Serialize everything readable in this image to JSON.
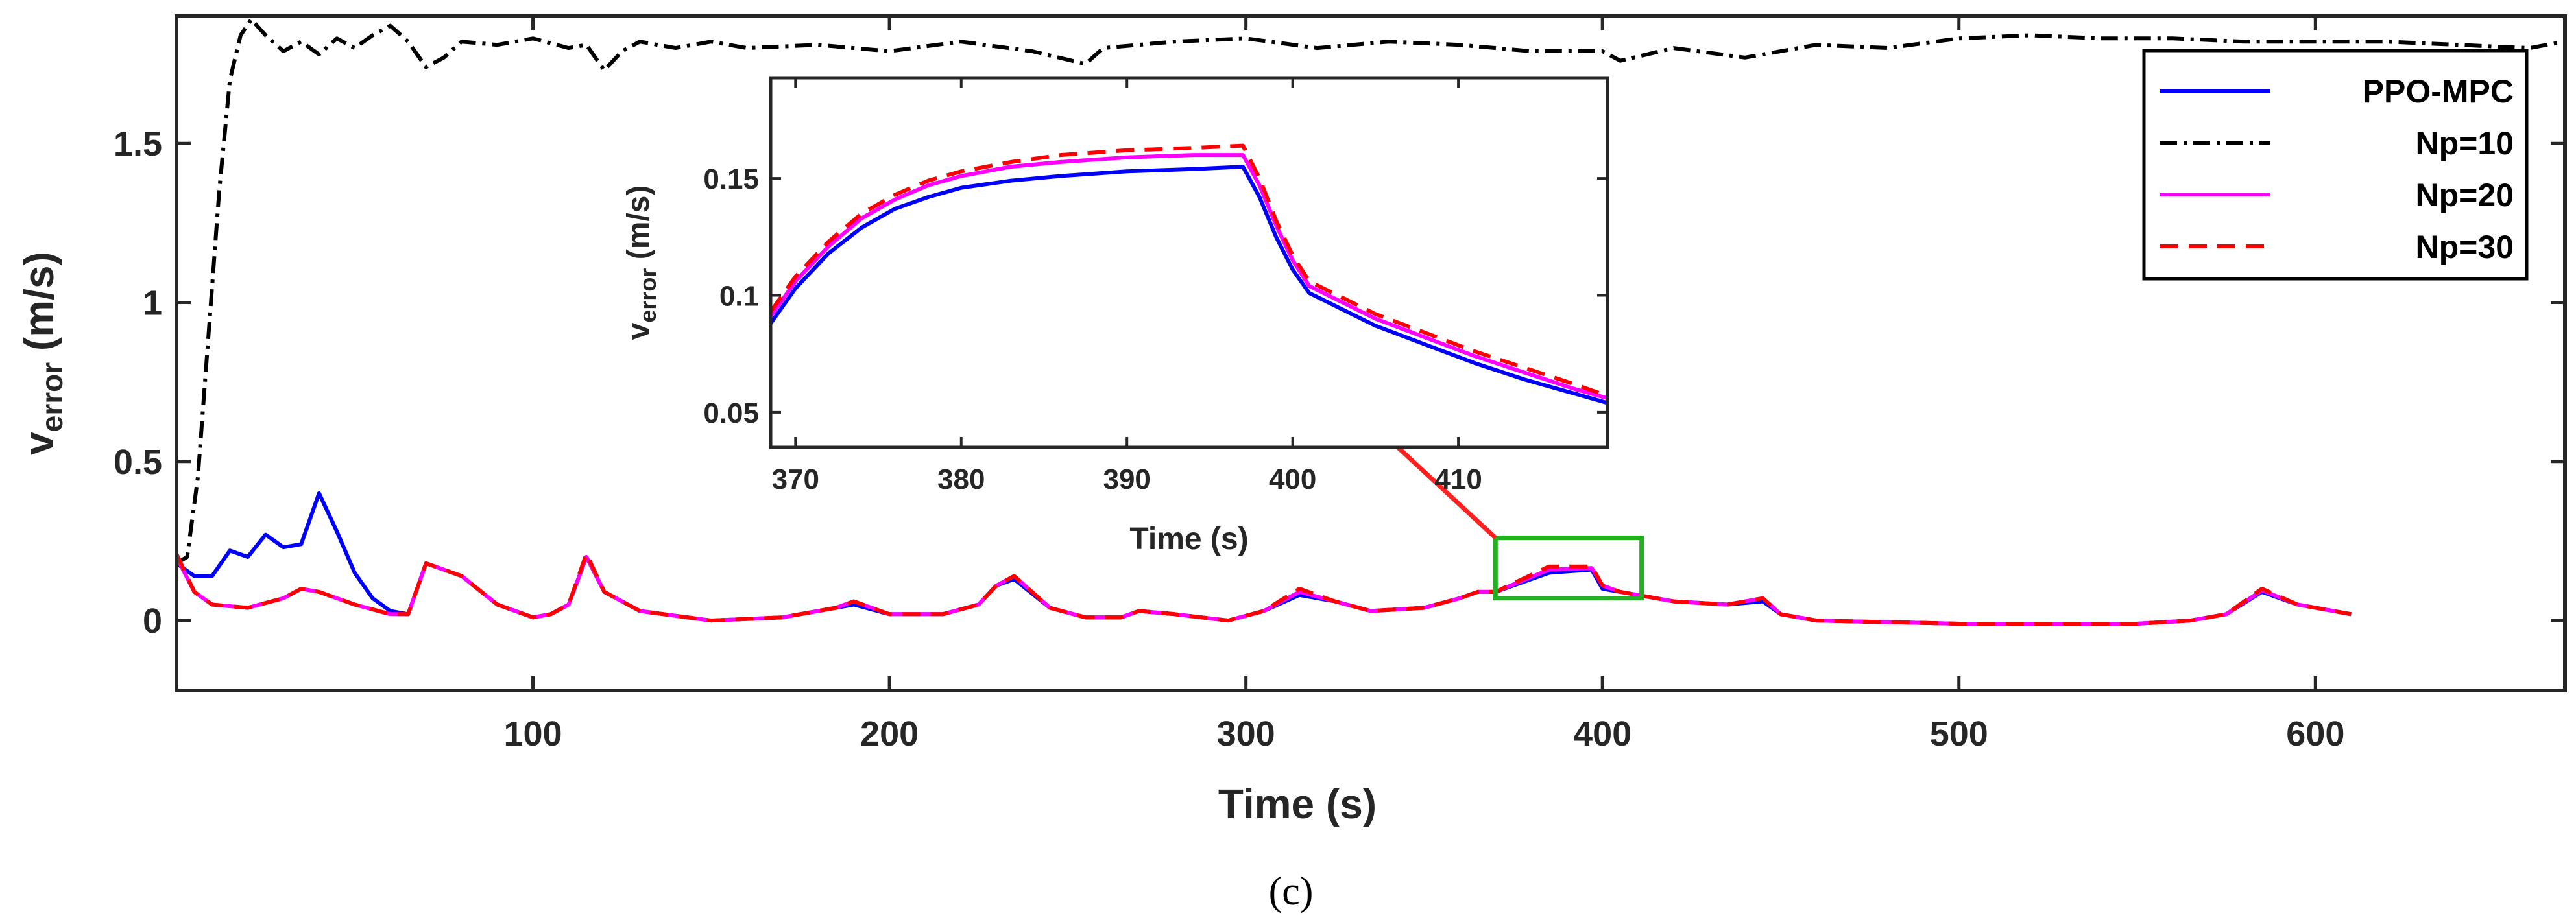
{
  "chart_data": [
    {
      "type": "line",
      "panel": "main",
      "xlabel": "Time (s)",
      "ylabel": {
        "base": "v",
        "subscript": "error",
        "unit": " (m/s)"
      },
      "xlim": [
        0,
        670
      ],
      "ylim": [
        -0.22,
        1.9
      ],
      "xticks": [
        100,
        200,
        300,
        400,
        500,
        600
      ],
      "yticks": [
        0,
        0.5,
        1,
        1.5
      ],
      "ytick_labels": [
        "0",
        "0.5",
        "1",
        "1.5"
      ],
      "legend": {
        "placement": "top-right",
        "entries": [
          "PPO-MPC",
          "Np=10",
          "Np=20",
          "Np=30"
        ]
      },
      "series": [
        {
          "name": "PPO-MPC",
          "color": "#0000FF",
          "dash": "solid",
          "x": [
            0,
            5,
            10,
            15,
            20,
            25,
            30,
            35,
            40,
            45,
            50,
            55,
            60,
            65,
            70,
            80,
            90,
            100,
            105,
            110,
            115,
            120,
            130,
            150,
            170,
            185,
            190,
            200,
            215,
            225,
            230,
            235,
            245,
            255,
            265,
            270,
            280,
            295,
            305,
            315,
            325,
            335,
            350,
            360,
            365,
            370,
            385,
            397,
            400,
            405,
            420,
            435,
            445,
            450,
            460,
            500,
            550,
            565,
            575,
            585,
            595,
            610
          ],
          "y": [
            0.18,
            0.14,
            0.14,
            0.22,
            0.2,
            0.27,
            0.23,
            0.24,
            0.4,
            0.28,
            0.15,
            0.07,
            0.03,
            0.02,
            0.18,
            0.14,
            0.05,
            0.01,
            0.02,
            0.05,
            0.2,
            0.09,
            0.03,
            0.0,
            0.01,
            0.04,
            0.05,
            0.02,
            0.02,
            0.05,
            0.11,
            0.13,
            0.04,
            0.01,
            0.01,
            0.03,
            0.02,
            0.0,
            0.03,
            0.08,
            0.06,
            0.03,
            0.04,
            0.07,
            0.09,
            0.09,
            0.15,
            0.16,
            0.1,
            0.09,
            0.06,
            0.05,
            0.06,
            0.02,
            0.0,
            -0.01,
            -0.01,
            0.0,
            0.02,
            0.09,
            0.05,
            0.02
          ]
        },
        {
          "name": "Np=10",
          "color": "#000000",
          "dash": "dashdot",
          "x": [
            0,
            3,
            6,
            9,
            12,
            15,
            18,
            21,
            25,
            30,
            35,
            40,
            45,
            50,
            55,
            60,
            65,
            70,
            75,
            80,
            90,
            100,
            110,
            115,
            120,
            125,
            130,
            140,
            150,
            160,
            180,
            200,
            220,
            240,
            255,
            260,
            280,
            300,
            320,
            340,
            360,
            380,
            400,
            405,
            420,
            440,
            460,
            480,
            500,
            520,
            540,
            560,
            580,
            600,
            620,
            640,
            660,
            670
          ],
          "y": [
            0.18,
            0.2,
            0.45,
            0.9,
            1.35,
            1.7,
            1.84,
            1.89,
            1.84,
            1.79,
            1.82,
            1.78,
            1.83,
            1.8,
            1.84,
            1.87,
            1.82,
            1.74,
            1.77,
            1.82,
            1.81,
            1.83,
            1.8,
            1.81,
            1.73,
            1.79,
            1.82,
            1.8,
            1.82,
            1.8,
            1.81,
            1.79,
            1.82,
            1.79,
            1.75,
            1.8,
            1.82,
            1.83,
            1.8,
            1.82,
            1.81,
            1.79,
            1.79,
            1.76,
            1.8,
            1.77,
            1.81,
            1.8,
            1.83,
            1.84,
            1.83,
            1.83,
            1.82,
            1.82,
            1.82,
            1.81,
            1.8,
            1.82
          ]
        },
        {
          "name": "Np=20",
          "color": "#FF00FF",
          "dash": "solid",
          "x": [
            0,
            5,
            10,
            20,
            30,
            35,
            40,
            50,
            60,
            65,
            70,
            80,
            90,
            100,
            105,
            110,
            115,
            120,
            130,
            150,
            170,
            185,
            190,
            200,
            215,
            225,
            230,
            235,
            245,
            255,
            265,
            270,
            280,
            295,
            305,
            315,
            325,
            335,
            350,
            360,
            365,
            370,
            385,
            397,
            400,
            405,
            420,
            435,
            445,
            450,
            460,
            500,
            550,
            565,
            575,
            585,
            595,
            610
          ],
          "y": [
            0.2,
            0.09,
            0.05,
            0.04,
            0.07,
            0.1,
            0.09,
            0.05,
            0.02,
            0.02,
            0.18,
            0.14,
            0.05,
            0.01,
            0.02,
            0.05,
            0.2,
            0.09,
            0.03,
            0.0,
            0.01,
            0.04,
            0.06,
            0.02,
            0.02,
            0.05,
            0.11,
            0.14,
            0.04,
            0.01,
            0.01,
            0.03,
            0.02,
            0.0,
            0.03,
            0.09,
            0.06,
            0.03,
            0.04,
            0.07,
            0.09,
            0.09,
            0.16,
            0.165,
            0.11,
            0.09,
            0.06,
            0.05,
            0.07,
            0.02,
            0.0,
            -0.01,
            -0.01,
            0.0,
            0.02,
            0.095,
            0.05,
            0.02
          ]
        },
        {
          "name": "Np=30",
          "color": "#FF0000",
          "dash": "dashed",
          "x": [
            0,
            5,
            10,
            20,
            30,
            35,
            40,
            50,
            60,
            65,
            70,
            80,
            90,
            100,
            105,
            110,
            115,
            120,
            130,
            150,
            170,
            185,
            190,
            200,
            215,
            225,
            230,
            235,
            245,
            255,
            265,
            270,
            280,
            295,
            305,
            315,
            325,
            335,
            350,
            360,
            365,
            370,
            385,
            397,
            400,
            405,
            420,
            435,
            445,
            450,
            460,
            500,
            550,
            565,
            575,
            585,
            595,
            610
          ],
          "y": [
            0.21,
            0.09,
            0.05,
            0.04,
            0.07,
            0.1,
            0.09,
            0.05,
            0.02,
            0.02,
            0.18,
            0.14,
            0.05,
            0.01,
            0.02,
            0.05,
            0.21,
            0.09,
            0.03,
            0.0,
            0.01,
            0.04,
            0.06,
            0.02,
            0.02,
            0.05,
            0.11,
            0.14,
            0.04,
            0.01,
            0.01,
            0.03,
            0.02,
            0.0,
            0.03,
            0.1,
            0.06,
            0.03,
            0.04,
            0.07,
            0.09,
            0.09,
            0.17,
            0.17,
            0.11,
            0.09,
            0.06,
            0.05,
            0.07,
            0.02,
            0.0,
            -0.01,
            -0.01,
            0.0,
            0.02,
            0.1,
            0.05,
            0.02
          ]
        }
      ],
      "annotations": [
        {
          "type": "rectangle",
          "color": "#22B022",
          "x_range": [
            370,
            411
          ],
          "y_range": [
            0.07,
            0.26
          ]
        },
        {
          "type": "arrow",
          "color": "#FF2020",
          "from": [
            370,
            0.26
          ],
          "to": [
            319,
            0.79
          ]
        }
      ]
    },
    {
      "type": "line",
      "panel": "inset",
      "xlabel": "Time (s)",
      "ylabel": {
        "base": "v",
        "subscript": "error",
        "unit": " (m/s)"
      },
      "xlim": [
        368.5,
        419
      ],
      "ylim": [
        0.035,
        0.193
      ],
      "xticks": [
        370,
        380,
        390,
        400,
        410
      ],
      "yticks": [
        0.05,
        0.1,
        0.15
      ],
      "ytick_labels": [
        "0.05",
        "0.1",
        "0.15"
      ],
      "series": [
        {
          "name": "PPO-MPC",
          "color": "#0000FF",
          "dash": "solid",
          "x": [
            368.5,
            370,
            372,
            374,
            376,
            378,
            380,
            383,
            386,
            390,
            394,
            397,
            398,
            399,
            400,
            401,
            403,
            405,
            408,
            411,
            414,
            417,
            419
          ],
          "y": [
            0.088,
            0.103,
            0.118,
            0.129,
            0.137,
            0.142,
            0.146,
            0.149,
            0.151,
            0.153,
            0.154,
            0.155,
            0.142,
            0.125,
            0.111,
            0.101,
            0.094,
            0.087,
            0.079,
            0.071,
            0.064,
            0.058,
            0.054
          ]
        },
        {
          "name": "Np=20",
          "color": "#FF00FF",
          "dash": "solid",
          "x": [
            368.5,
            370,
            372,
            374,
            376,
            378,
            380,
            383,
            386,
            390,
            394,
            397,
            398,
            399,
            400,
            401,
            403,
            405,
            408,
            411,
            414,
            417,
            419
          ],
          "y": [
            0.091,
            0.106,
            0.121,
            0.133,
            0.141,
            0.147,
            0.151,
            0.155,
            0.157,
            0.159,
            0.16,
            0.16,
            0.147,
            0.13,
            0.115,
            0.104,
            0.097,
            0.09,
            0.082,
            0.074,
            0.067,
            0.06,
            0.056
          ]
        },
        {
          "name": "Np=30",
          "color": "#FF0000",
          "dash": "dashed",
          "x": [
            368.5,
            370,
            372,
            374,
            376,
            378,
            380,
            383,
            386,
            390,
            394,
            397,
            398,
            399,
            400,
            401,
            403,
            405,
            408,
            411,
            414,
            417,
            419
          ],
          "y": [
            0.093,
            0.108,
            0.123,
            0.135,
            0.143,
            0.149,
            0.153,
            0.157,
            0.16,
            0.162,
            0.163,
            0.164,
            0.15,
            0.132,
            0.117,
            0.106,
            0.099,
            0.092,
            0.084,
            0.076,
            0.069,
            0.062,
            0.057
          ]
        }
      ]
    }
  ],
  "caption": "(c)"
}
